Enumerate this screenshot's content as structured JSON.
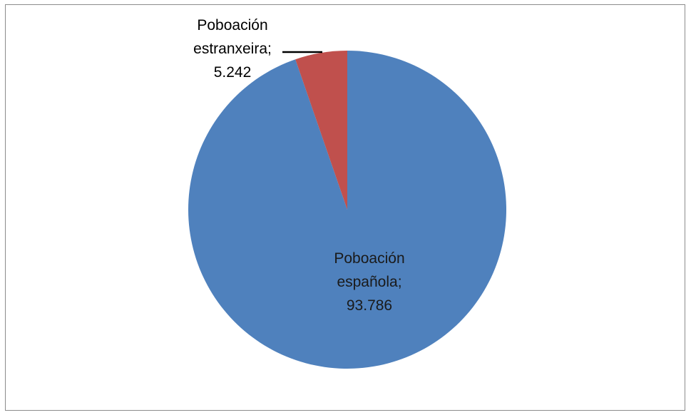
{
  "chart_data": {
    "type": "pie",
    "title": "",
    "legend": "none",
    "slices": [
      {
        "label_lines": [
          "Poboación",
          "española;",
          "93.786"
        ],
        "category": "Poboación española",
        "value": 93786,
        "value_label": "93.786",
        "color": "#4F81BD"
      },
      {
        "label_lines": [
          "Poboación",
          "estranxeira;",
          "5.242"
        ],
        "category": "Poboación estranxeira",
        "value": 5242,
        "value_label": "5.242",
        "color": "#C0504D"
      }
    ]
  }
}
